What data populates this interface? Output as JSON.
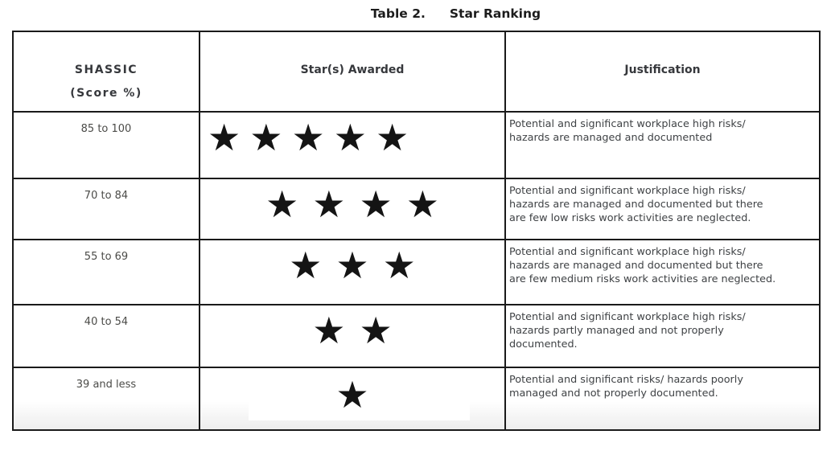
{
  "caption": {
    "label": "Table 2.",
    "title": "Star Ranking"
  },
  "table": {
    "header": {
      "score_line1": "SHASSIC",
      "score_line2": "(Score %)",
      "stars": "Star(s) Awarded",
      "justification": "Justification"
    },
    "rows": [
      {
        "score": "85 to 100",
        "stars_count": 5,
        "stars_display": "★★★★★",
        "stars_align": "left",
        "justification": "Potential and significant workplace high risks/\nhazards are managed and documented"
      },
      {
        "score": "70 to 84",
        "stars_count": 4,
        "stars_display": "★★★★",
        "stars_align": "center",
        "justification": "Potential and significant workplace high risks/\nhazards are managed and documented but there\nare few low risks work activities are neglected."
      },
      {
        "score": "55 to 69",
        "stars_count": 3,
        "stars_display": "★★★",
        "stars_align": "center",
        "justification": "Potential and significant workplace high risks/\nhazards are managed and documented but there\nare few medium risks work activities are neglected."
      },
      {
        "score": "40 to 54",
        "stars_count": 2,
        "stars_display": "★★",
        "stars_align": "center",
        "justification": "Potential and significant workplace high risks/\nhazards partly managed and not properly\ndocumented."
      },
      {
        "score": "39 and less",
        "stars_count": 1,
        "stars_display": "★",
        "stars_align": "center",
        "justification": "Potential and significant risks/ hazards poorly\nmanaged and not properly documented."
      }
    ]
  },
  "colors": {
    "border": "#1a1a1a",
    "body_text": "#3f4245",
    "star": "#141414",
    "title_text": "#1c1c1c"
  }
}
